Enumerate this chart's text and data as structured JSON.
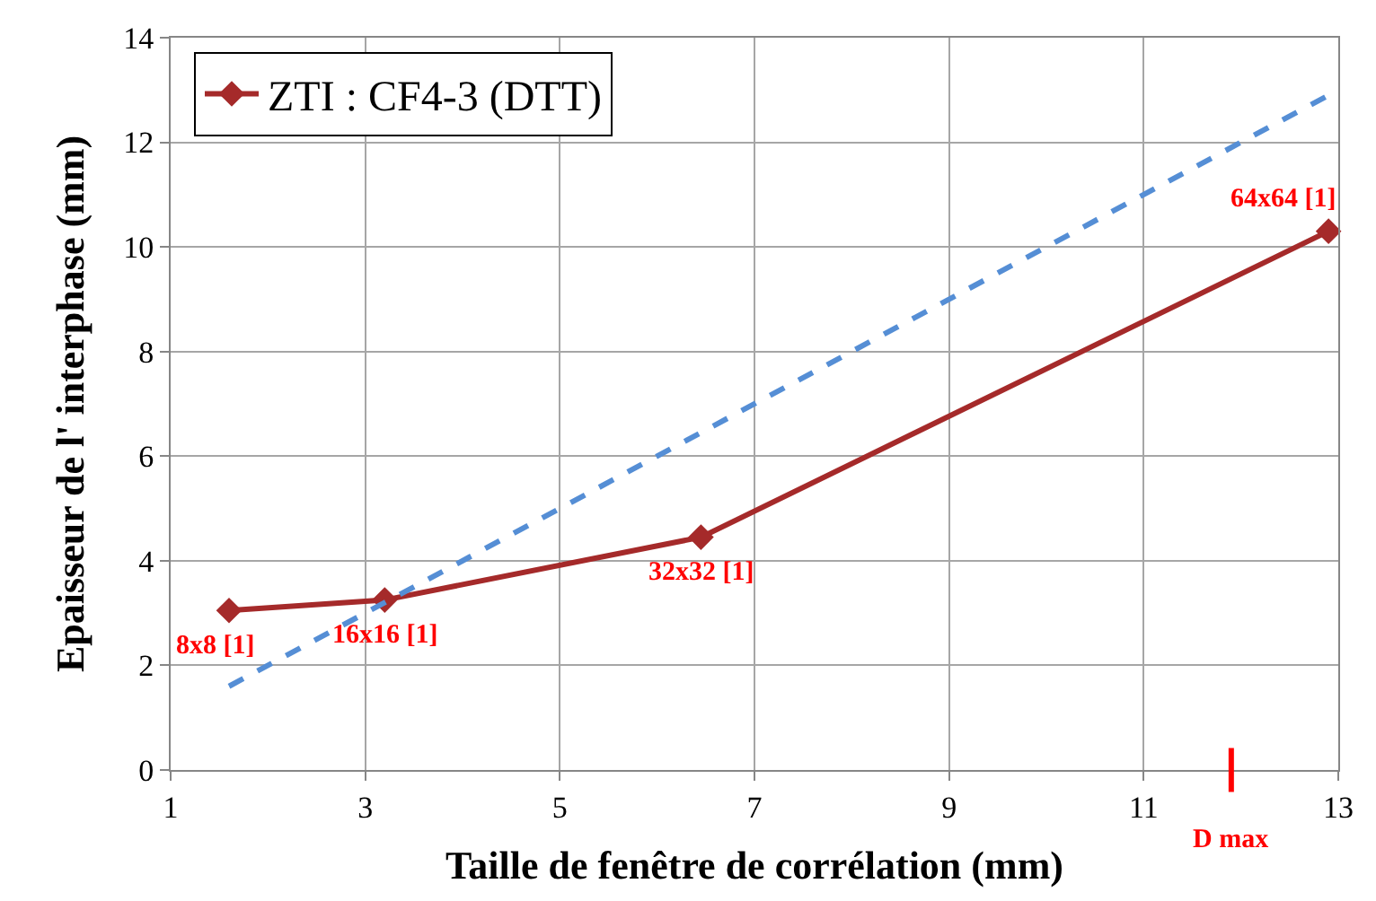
{
  "chart_data": {
    "type": "line",
    "xlabel": "Taille de fenêtre de corrélation (mm)",
    "ylabel": "Epaisseur de l' interphase (mm)",
    "xlim": [
      1,
      13
    ],
    "xticks": [
      1,
      3,
      5,
      7,
      9,
      11,
      13
    ],
    "ylim": [
      0,
      14
    ],
    "yticks": [
      0,
      2,
      4,
      6,
      8,
      10,
      12,
      14
    ],
    "grid": true,
    "legend": "top left",
    "series": [
      {
        "name": "ZTI : CF4-3 (DTT)",
        "color": "#a52a2a",
        "x": [
          1.6,
          3.2,
          6.45,
          12.9
        ],
        "values": [
          3.05,
          3.25,
          4.45,
          10.3
        ],
        "marker": "diamond",
        "line_style": "solid"
      },
      {
        "color": "#558ed5",
        "x": [
          1.6,
          12.9
        ],
        "values": [
          1.6,
          12.9
        ],
        "marker": "none",
        "line_style": "dashed"
      }
    ],
    "annotations": [
      {
        "text": "8x8 [1]",
        "x": 1.6,
        "y": 3.05
      },
      {
        "text": "16x16 [1]",
        "x": 3.2,
        "y": 3.25
      },
      {
        "text": "32x32 [1]",
        "x": 6.45,
        "y": 4.45
      },
      {
        "text": "64x64 [1]",
        "x": 12.9,
        "y": 10.3
      }
    ],
    "ref_lines": [
      {
        "axis": "x",
        "value": 11.9,
        "label": "D max",
        "color": "#ff0000"
      }
    ]
  }
}
